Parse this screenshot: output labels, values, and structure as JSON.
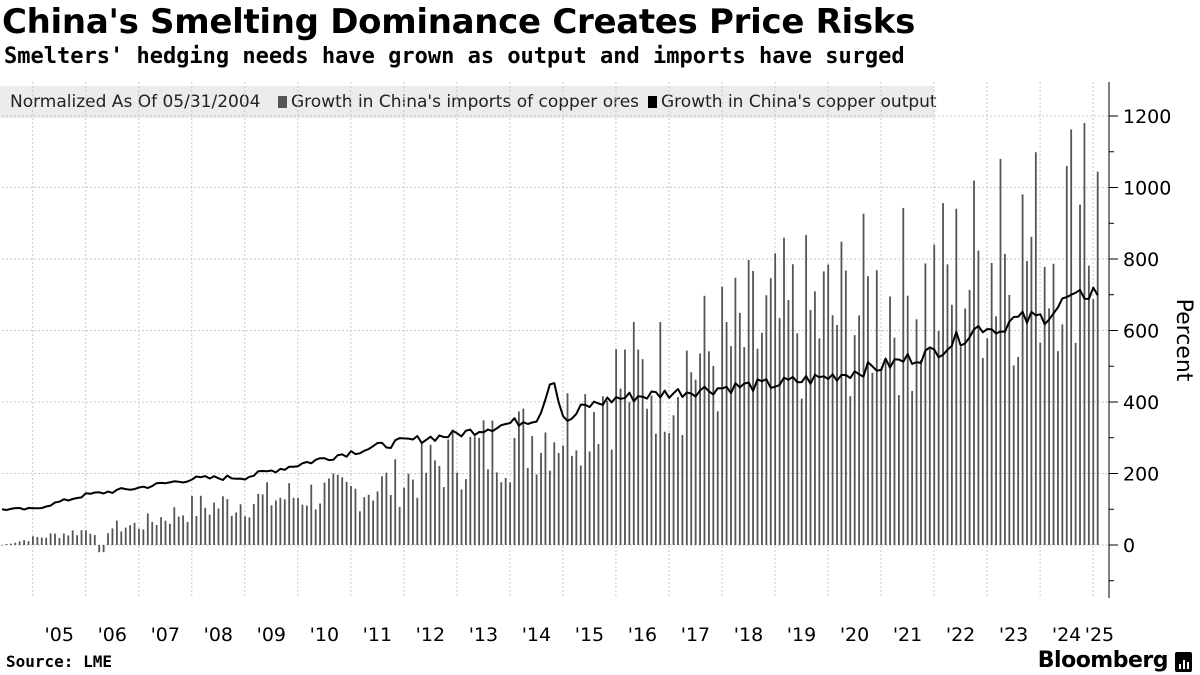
{
  "title": "China's Smelting Dominance Creates Price Risks",
  "subtitle": "Smelters' hedging needs have grown as output and imports have surged",
  "legend": {
    "note": "Normalized As Of 05/31/2004",
    "series_bars": "Growth in China's imports of copper ores",
    "series_line": "Growth in China's copper output"
  },
  "source": "Source: LME",
  "brand": "Bloomberg",
  "colors": {
    "bars": "#555555",
    "line": "#000000",
    "legend_bg": "#ececec",
    "grid": "#c8c8c8"
  },
  "chart_data": {
    "type": "bar+line",
    "ylabel": "Percent",
    "ylim": [
      -130,
      1300
    ],
    "yticks": [
      0,
      200,
      400,
      600,
      800,
      1000,
      1200
    ],
    "xticks": [
      "'05",
      "'06",
      "'07",
      "'08",
      "'09",
      "'10",
      "'11",
      "'12",
      "'13",
      "'14",
      "'15",
      "'16",
      "'17",
      "'18",
      "'19",
      "'20",
      "'21",
      "'22",
      "'23",
      "'24",
      "'25"
    ],
    "grid": true,
    "legend_position": "top-left",
    "annual_points": [
      {
        "year": 2004.42,
        "bars": 0,
        "line": 100
      },
      {
        "year": 2005.0,
        "bars": 20,
        "line": 100
      },
      {
        "year": 2006.0,
        "bars": 45,
        "line": 140
      },
      {
        "year": 2007.0,
        "bars": 60,
        "line": 160
      },
      {
        "year": 2008.0,
        "bars": 110,
        "line": 185
      },
      {
        "year": 2009.0,
        "bars": 130,
        "line": 190
      },
      {
        "year": 2010.0,
        "bars": 150,
        "line": 225
      },
      {
        "year": 2011.0,
        "bars": 160,
        "line": 260
      },
      {
        "year": 2012.0,
        "bars": 195,
        "line": 290
      },
      {
        "year": 2013.0,
        "bars": 270,
        "line": 310
      },
      {
        "year": 2014.0,
        "bars": 310,
        "line": 340
      },
      {
        "year": 2015.0,
        "bars": 360,
        "line": 370
      },
      {
        "year": 2016.0,
        "bars": 490,
        "line": 410
      },
      {
        "year": 2017.0,
        "bars": 520,
        "line": 425
      },
      {
        "year": 2018.0,
        "bars": 590,
        "line": 440
      },
      {
        "year": 2019.0,
        "bars": 660,
        "line": 450
      },
      {
        "year": 2020.0,
        "bars": 690,
        "line": 470
      },
      {
        "year": 2021.0,
        "bars": 730,
        "line": 500
      },
      {
        "year": 2022.0,
        "bars": 760,
        "line": 540
      },
      {
        "year": 2023.0,
        "bars": 860,
        "line": 620
      },
      {
        "year": 2024.0,
        "bars": 900,
        "line": 635
      },
      {
        "year": 2024.75,
        "bars": 1000,
        "line": 700
      },
      {
        "year": 2025.0,
        "bars": 950,
        "line": 710
      }
    ],
    "line_highlights": [
      {
        "year": 2014.8,
        "line": 470
      },
      {
        "year": 2015.1,
        "line": 345
      },
      {
        "year": 2023.2,
        "line": 590
      },
      {
        "year": 2024.6,
        "line": 700
      }
    ],
    "bar_highlights": [
      {
        "year": 2006.3,
        "bars": -20
      },
      {
        "year": 2023.25,
        "bars": 1080
      },
      {
        "year": 2024.85,
        "bars": 1180
      }
    ]
  }
}
